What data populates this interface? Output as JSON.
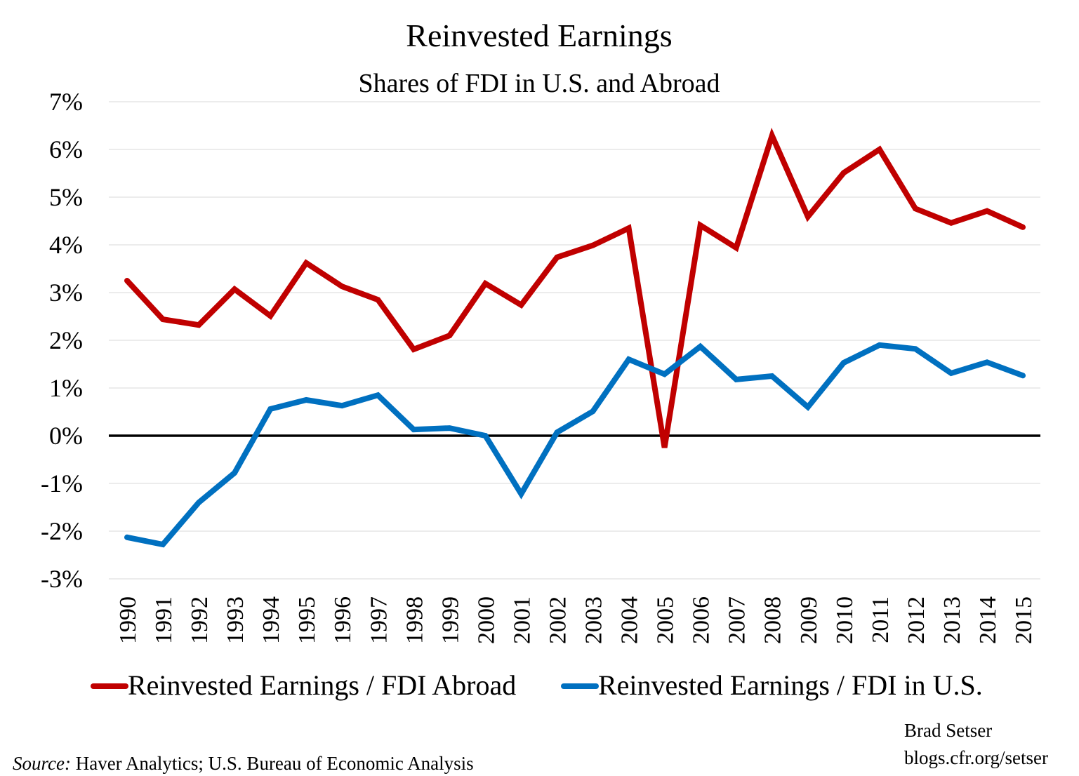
{
  "chart_data": {
    "type": "line",
    "title": "Reinvested Earnings",
    "subtitle": "Shares of FDI in U.S. and Abroad",
    "xlabel": "",
    "ylabel": "",
    "ylim": [
      -3,
      7
    ],
    "y_ticks": [
      -3,
      -2,
      -1,
      0,
      1,
      2,
      3,
      4,
      5,
      6,
      7
    ],
    "y_tick_labels": [
      "-3%",
      "-2%",
      "-1%",
      "0%",
      "1%",
      "2%",
      "3%",
      "4%",
      "5%",
      "6%",
      "7%"
    ],
    "grid": true,
    "legend_position": "bottom",
    "x": [
      "1990",
      "1991",
      "1992",
      "1993",
      "1994",
      "1995",
      "1996",
      "1997",
      "1998",
      "1999",
      "2000",
      "2001",
      "2002",
      "2003",
      "2004",
      "2005",
      "2006",
      "2007",
      "2008",
      "2009",
      "2010",
      "2011",
      "2012",
      "2013",
      "2014",
      "2015"
    ],
    "series": [
      {
        "name": "Reinvested Earnings / FDI Abroad",
        "color": "#c00000",
        "values": [
          3.25,
          2.44,
          2.32,
          3.07,
          2.51,
          3.62,
          3.13,
          2.85,
          1.81,
          2.1,
          3.19,
          2.74,
          3.74,
          3.99,
          4.35,
          -0.25,
          4.41,
          3.94,
          6.29,
          4.59,
          5.51,
          6.0,
          4.76,
          4.46,
          4.71,
          4.37
        ]
      },
      {
        "name": "Reinvested Earnings / FDI in U.S.",
        "color": "#0070c0",
        "values": [
          -2.13,
          -2.28,
          -1.4,
          -0.78,
          0.56,
          0.75,
          0.63,
          0.85,
          0.13,
          0.16,
          0.0,
          -1.22,
          0.07,
          0.51,
          1.6,
          1.29,
          1.87,
          1.18,
          1.25,
          0.6,
          1.53,
          1.9,
          1.82,
          1.31,
          1.54,
          1.26
        ]
      }
    ]
  },
  "footer": {
    "source_label": "Source:",
    "source_text": " Haver Analytics; U.S. Bureau of Economic Analysis",
    "author": "Brad Setser",
    "url": "blogs.cfr.org/setser"
  }
}
